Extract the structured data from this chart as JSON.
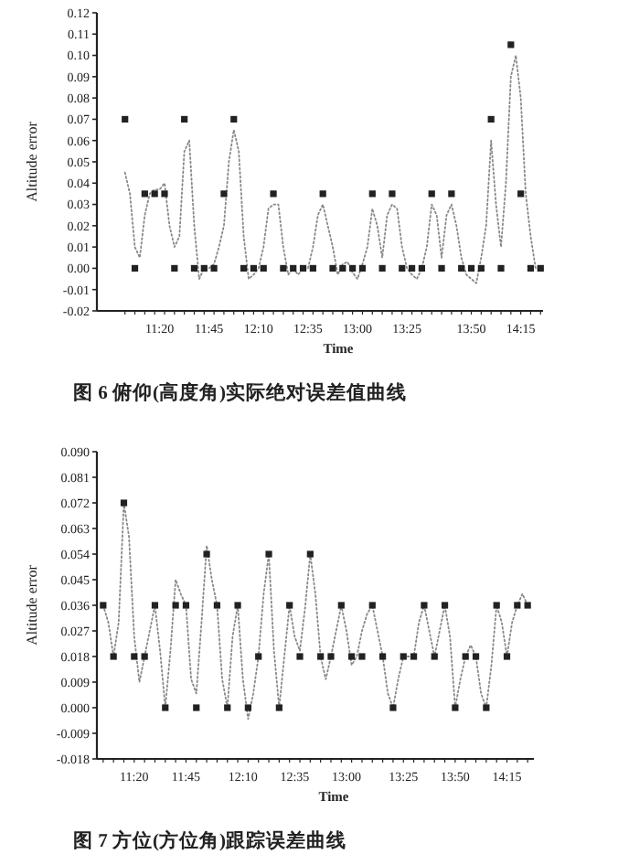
{
  "chart_data": [
    {
      "type": "line",
      "xlabel": "Time",
      "ylabel": "Altitude error",
      "annotations": [
        "图 6   俯仰(高度角)实际绝对误差值曲线"
      ],
      "categories": [
        null,
        null,
        null,
        null,
        null,
        null,
        null,
        "11:20",
        null,
        null,
        null,
        null,
        null,
        null,
        null,
        null,
        null,
        "11:45",
        null,
        null,
        null,
        null,
        null,
        null,
        null,
        null,
        null,
        "12:10",
        null,
        null,
        null,
        null,
        null,
        null,
        null,
        null,
        null,
        "12:35",
        null,
        null,
        null,
        null,
        null,
        null,
        null,
        null,
        null,
        "13:00",
        null,
        null,
        null,
        null,
        null,
        null,
        null,
        null,
        null,
        "13:25",
        null,
        null,
        null,
        null,
        null,
        null,
        null,
        null,
        null,
        null,
        null,
        null,
        "13:50",
        null,
        null,
        null,
        null,
        null,
        null,
        null,
        null,
        null,
        "14:15",
        null,
        null,
        null,
        null
      ],
      "ylim": [
        -0.02,
        0.12
      ],
      "yticks": [
        {
          "value": -0.02,
          "label": "-0.02"
        },
        {
          "value": -0.01,
          "label": "-0.01"
        },
        {
          "value": 0,
          "label": "0.00"
        },
        {
          "value": 0.01,
          "label": "0.01"
        },
        {
          "value": 0.02,
          "label": "0.02"
        },
        {
          "value": 0.03,
          "label": "0.03"
        },
        {
          "value": 0.04,
          "label": "0.04"
        },
        {
          "value": 0.05,
          "label": "0.05"
        },
        {
          "value": 0.06,
          "label": "0.06"
        },
        {
          "value": 0.07,
          "label": "0.07"
        },
        {
          "value": 0.08,
          "label": "0.08"
        },
        {
          "value": 0.09,
          "label": "0.09"
        },
        {
          "value": 0.1,
          "label": "0.10"
        },
        {
          "value": 0.11,
          "label": "0.11"
        },
        {
          "value": 0.12,
          "label": "0.12"
        }
      ],
      "series": [
        {
          "type": "line",
          "color": "#888888",
          "line_style": "dotted",
          "marker": "none",
          "values": [
            0.045,
            0.035,
            0.01,
            0.005,
            0.025,
            0.035,
            0.037,
            0.037,
            0.04,
            0.02,
            0.01,
            0.015,
            0.055,
            0.06,
            0.02,
            -0.005,
            0,
            0,
            0.002,
            0.01,
            0.02,
            0.05,
            0.065,
            0.055,
            0.015,
            -0.005,
            -0.003,
            0,
            0.01,
            0.028,
            0.03,
            0.03,
            0.01,
            -0.003,
            0,
            -0.003,
            0,
            0,
            0.01,
            0.025,
            0.03,
            0.02,
            0.01,
            -0.003,
            0.002,
            0.003,
            -0.002,
            -0.005,
            0.002,
            0.01,
            0.028,
            0.02,
            0.005,
            0.025,
            0.03,
            0.028,
            0.01,
            0,
            -0.003,
            -0.005,
            0,
            0.01,
            0.03,
            0.025,
            0.005,
            0.025,
            0.03,
            0.02,
            0.005,
            -0.003,
            -0.005,
            -0.007,
            0.005,
            0.02,
            0.06,
            0.03,
            0.01,
            0.04,
            0.09,
            0.1,
            0.08,
            0.035,
            0.015,
            0,
            0
          ]
        },
        {
          "type": "scatter",
          "color": "#222222",
          "marker": "square",
          "values": [
            0.07,
            null,
            0,
            null,
            0.035,
            null,
            0.035,
            null,
            0.035,
            null,
            0,
            null,
            0.07,
            null,
            0,
            null,
            0,
            null,
            0,
            null,
            0.035,
            null,
            0.07,
            null,
            0,
            null,
            0,
            null,
            0,
            null,
            0.035,
            null,
            0,
            null,
            0,
            null,
            0,
            null,
            0,
            null,
            0.035,
            null,
            0,
            null,
            0,
            null,
            0,
            null,
            0,
            null,
            0.035,
            null,
            0,
            null,
            0.035,
            null,
            0,
            null,
            0,
            null,
            0,
            null,
            0.035,
            null,
            0,
            null,
            0.035,
            null,
            0,
            null,
            0,
            null,
            0,
            null,
            0.07,
            null,
            0,
            null,
            0.105,
            null,
            0.035,
            null,
            0,
            null,
            0
          ]
        }
      ]
    },
    {
      "type": "line",
      "xlabel": "Time",
      "ylabel": "Altitude error",
      "annotations": [
        "图 7   方位(方位角)跟踪误差曲线"
      ],
      "categories": [
        null,
        null,
        null,
        null,
        null,
        null,
        "11:20",
        null,
        null,
        null,
        null,
        null,
        null,
        null,
        null,
        null,
        "11:45",
        null,
        null,
        null,
        null,
        null,
        null,
        null,
        null,
        null,
        null,
        "12:10",
        null,
        null,
        null,
        null,
        null,
        null,
        null,
        null,
        null,
        "12:35",
        null,
        null,
        null,
        null,
        null,
        null,
        null,
        null,
        null,
        "13:00",
        null,
        null,
        null,
        null,
        null,
        null,
        null,
        null,
        null,
        null,
        "13:25",
        null,
        null,
        null,
        null,
        null,
        null,
        null,
        null,
        null,
        "13:50",
        null,
        null,
        null,
        null,
        null,
        null,
        null,
        null,
        null,
        "14:15",
        null,
        null,
        null,
        null
      ],
      "ylim": [
        -0.018,
        0.09
      ],
      "yticks": [
        {
          "value": -0.018,
          "label": "-0.018"
        },
        {
          "value": -0.009,
          "label": "-0.009"
        },
        {
          "value": 0,
          "label": "0.000"
        },
        {
          "value": 0.009,
          "label": "0.009"
        },
        {
          "value": 0.018,
          "label": "0.018"
        },
        {
          "value": 0.027,
          "label": "0.027"
        },
        {
          "value": 0.036,
          "label": "0.036"
        },
        {
          "value": 0.045,
          "label": "0.045"
        },
        {
          "value": 0.054,
          "label": "0.054"
        },
        {
          "value": 0.063,
          "label": "0.063"
        },
        {
          "value": 0.072,
          "label": "0.072"
        },
        {
          "value": 0.081,
          "label": "0.081"
        },
        {
          "value": 0.09,
          "label": "0.090"
        }
      ],
      "series": [
        {
          "type": "line",
          "color": "#888888",
          "line_style": "dotted",
          "marker": "none",
          "values": [
            0.036,
            0.03,
            0.018,
            0.03,
            0.072,
            0.06,
            0.025,
            0.009,
            0.018,
            0.027,
            0.036,
            0.02,
            0,
            0.02,
            0.045,
            0.04,
            0.036,
            0.01,
            0.005,
            0.03,
            0.057,
            0.045,
            0.036,
            0.01,
            0,
            0.025,
            0.036,
            0.01,
            -0.004,
            0.005,
            0.018,
            0.04,
            0.054,
            0.02,
            0,
            0.018,
            0.036,
            0.025,
            0.02,
            0.035,
            0.054,
            0.04,
            0.018,
            0.01,
            0.018,
            0.027,
            0.036,
            0.027,
            0.015,
            0.018,
            0.027,
            0.033,
            0.036,
            0.027,
            0.018,
            0.005,
            0,
            0.01,
            0.018,
            0.018,
            0.018,
            0.03,
            0.036,
            0.027,
            0.018,
            0.027,
            0.036,
            0.025,
            0,
            0.01,
            0.018,
            0.022,
            0.018,
            0.005,
            0,
            0.015,
            0.036,
            0.03,
            0.018,
            0.03,
            0.036,
            0.04,
            0.036
          ]
        },
        {
          "type": "scatter",
          "color": "#222222",
          "marker": "square",
          "values": [
            0.036,
            null,
            0.018,
            null,
            0.072,
            null,
            0.018,
            null,
            0.018,
            null,
            0.036,
            null,
            0,
            null,
            0.036,
            null,
            0.036,
            null,
            0,
            null,
            0.054,
            null,
            0.036,
            null,
            0,
            null,
            0.036,
            null,
            0,
            null,
            0.018,
            null,
            0.054,
            null,
            0,
            null,
            0.036,
            null,
            0.018,
            null,
            0.054,
            null,
            0.018,
            null,
            0.018,
            null,
            0.036,
            null,
            0.018,
            null,
            0.018,
            null,
            0.036,
            null,
            0.018,
            null,
            0,
            null,
            0.018,
            null,
            0.018,
            null,
            0.036,
            null,
            0.018,
            null,
            0.036,
            null,
            0,
            null,
            0.018,
            null,
            0.018,
            null,
            0,
            null,
            0.036,
            null,
            0.018,
            null,
            0.036,
            null,
            0.036
          ]
        }
      ]
    }
  ]
}
